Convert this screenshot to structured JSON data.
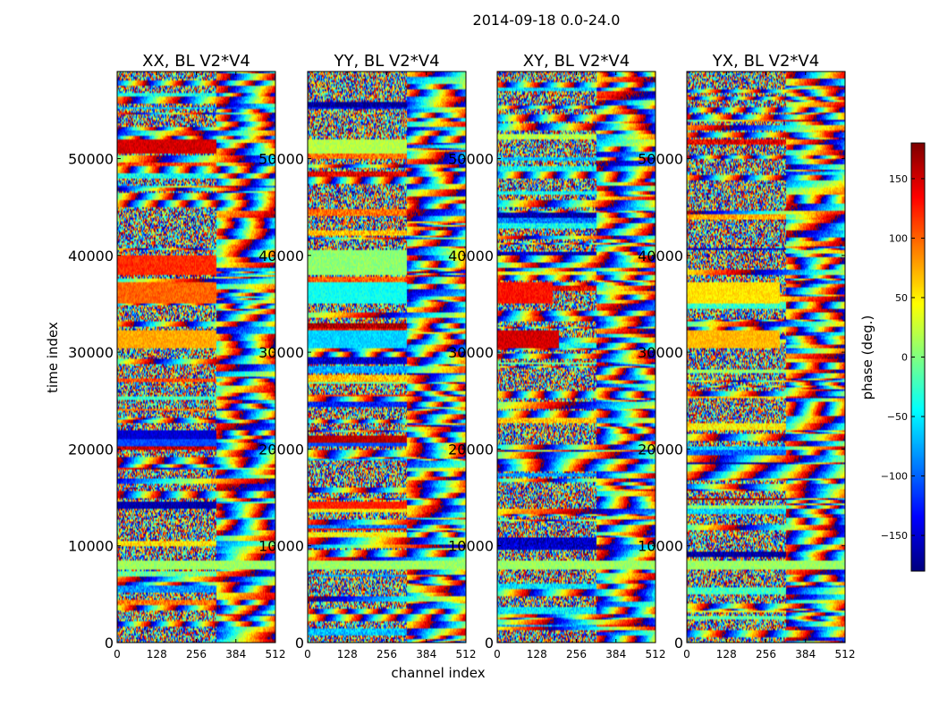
{
  "figure": {
    "suptitle": "2014-09-18 0.0-24.0"
  },
  "chart_data": {
    "type": "heatmap",
    "title": "2014-09-18 0.0-24.0",
    "xlabel": "channel index",
    "ylabel": "time index",
    "xlim": [
      0,
      512
    ],
    "ylim": [
      0,
      59000
    ],
    "x_ticks": [
      0,
      128,
      256,
      384,
      512
    ],
    "y_ticks": [
      0,
      10000,
      20000,
      30000,
      40000,
      50000
    ],
    "colorbar": {
      "label": "phase (deg.)",
      "range": [
        -180,
        180
      ],
      "ticks": [
        -150,
        -100,
        -50,
        0,
        50,
        100,
        150
      ],
      "colormap": "jet"
    },
    "panels": [
      {
        "title": "XX, BL V2*V4",
        "stripes": [
          {
            "t0": 50500,
            "t1": 52000,
            "phase": 150,
            "c1": 320
          },
          {
            "t0": 38000,
            "t1": 40000,
            "phase": 120,
            "c1": 320
          },
          {
            "t0": 35000,
            "t1": 37200,
            "phase": 100,
            "c1": 320
          },
          {
            "t0": 30500,
            "t1": 32300,
            "phase": 75,
            "c1": 320
          },
          {
            "t0": 21000,
            "t1": 22000,
            "phase": -150,
            "c1": 320
          },
          {
            "t0": 20300,
            "t1": 21000,
            "phase": -110,
            "c1": 320
          },
          {
            "t0": 13800,
            "t1": 14500,
            "phase": -165,
            "c1": 320
          },
          {
            "t0": 7500,
            "t1": 8500,
            "phase": 10,
            "c1": 512
          }
        ]
      },
      {
        "title": "YY, BL V2*V4",
        "stripes": [
          {
            "t0": 50500,
            "t1": 52000,
            "phase": 20,
            "c1": 320
          },
          {
            "t0": 38000,
            "t1": 40500,
            "phase": 5,
            "c1": 320
          },
          {
            "t0": 35000,
            "t1": 37200,
            "phase": -40,
            "c1": 320
          },
          {
            "t0": 30500,
            "t1": 32300,
            "phase": -60,
            "c1": 320
          },
          {
            "t0": 20700,
            "t1": 21400,
            "phase": 160,
            "c1": 320
          },
          {
            "t0": 20300,
            "t1": 20700,
            "phase": -110,
            "c1": 320
          },
          {
            "t0": 13800,
            "t1": 14500,
            "phase": 125,
            "c1": 320
          },
          {
            "t0": 7500,
            "t1": 8500,
            "phase": 10,
            "c1": 512
          }
        ]
      },
      {
        "title": "XY, BL V2*V4",
        "stripes": [
          {
            "t0": 30500,
            "t1": 32300,
            "phase": 150,
            "c1": 200
          },
          {
            "t0": 35000,
            "t1": 37200,
            "phase": 130,
            "c1": 180
          },
          {
            "t0": 7500,
            "t1": 8500,
            "phase": 10,
            "c1": 512
          }
        ]
      },
      {
        "title": "YX, BL V2*V4",
        "stripes": [
          {
            "t0": 30500,
            "t1": 32300,
            "phase": 70,
            "c1": 300
          },
          {
            "t0": 35000,
            "t1": 37200,
            "phase": 55,
            "c1": 300
          },
          {
            "t0": 7500,
            "t1": 8500,
            "phase": 10,
            "c1": 512
          }
        ]
      }
    ]
  }
}
